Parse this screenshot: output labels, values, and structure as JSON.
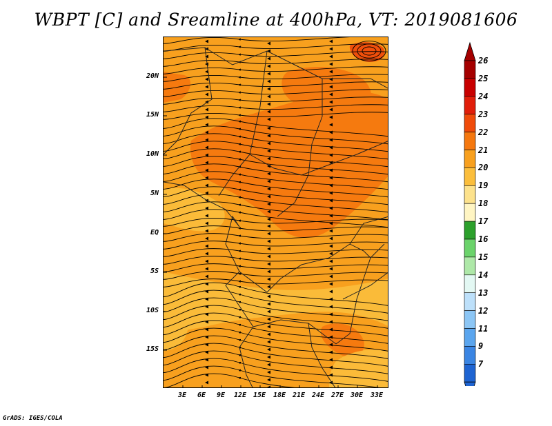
{
  "title": "WBPT [C] and Sreamline at 400hPa, VT: 2019081606",
  "credit": "GrADS: IGES/COLA",
  "lat_labels": [
    "20N",
    "15N",
    "10N",
    "5N",
    "EQ",
    "5S",
    "10S",
    "15S"
  ],
  "lon_labels": [
    "3E",
    "6E",
    "9E",
    "12E",
    "15E",
    "18E",
    "21E",
    "24E",
    "27E",
    "30E",
    "33E"
  ],
  "colorbar": {
    "labels": [
      "26",
      "25",
      "24",
      "23",
      "22",
      "21",
      "20",
      "19",
      "18",
      "17",
      "16",
      "15",
      "14",
      "13",
      "12",
      "11",
      "9",
      "7"
    ],
    "colors": [
      "#a50000",
      "#c80000",
      "#e11e0a",
      "#f04b0a",
      "#f5780f",
      "#f8a01e",
      "#fbbe3c",
      "#fde28c",
      "#fff5c3",
      "#2ca02c",
      "#6bd36b",
      "#aee8a8",
      "#e3f8f3",
      "#bde0fa",
      "#8cc6f5",
      "#5aa5ee",
      "#3a85e3",
      "#1e64d2"
    ],
    "top_arrow_color": "#a50000",
    "bottom_arrow_color": "#1e64d2"
  },
  "map": {
    "field": "WBPT",
    "units": "C",
    "level": "400hPa",
    "valid_time": "2019081606",
    "dominant_colors": [
      "#f5780f",
      "#f8a01e",
      "#fbbe3c"
    ]
  }
}
